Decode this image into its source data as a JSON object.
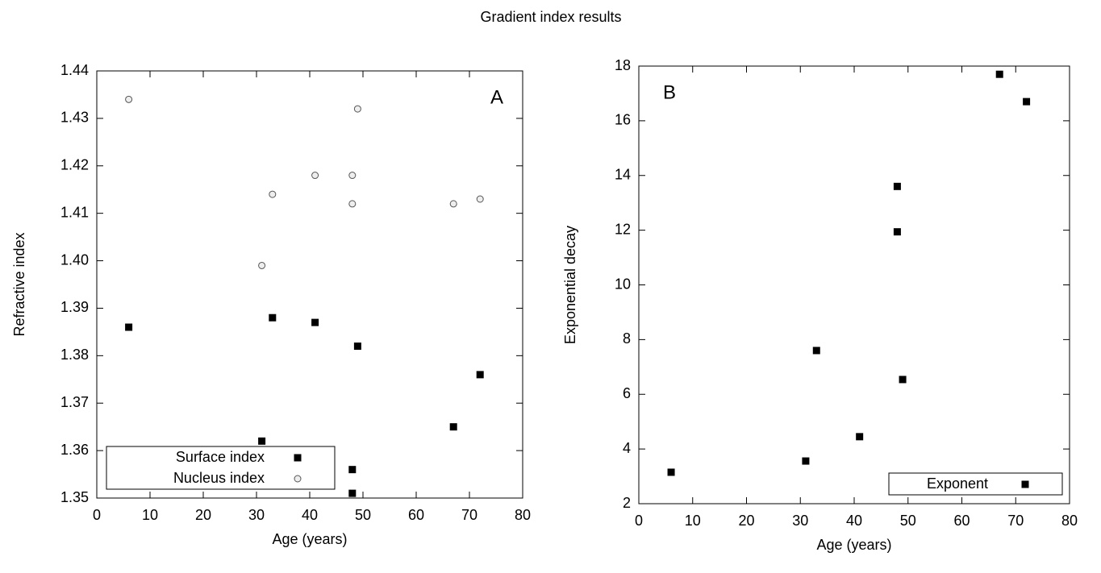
{
  "title": "Gradient index results",
  "chart_data": [
    {
      "type": "scatter",
      "annotation": "A",
      "xlabel": "Age (years)",
      "ylabel": "Refractive index",
      "xlim": [
        0,
        80
      ],
      "xticks": [
        0,
        10,
        20,
        30,
        40,
        50,
        60,
        70,
        80
      ],
      "ylim": [
        1.35,
        1.44
      ],
      "yticks": [
        1.35,
        1.36,
        1.37,
        1.38,
        1.39,
        {
          "value": 1.4,
          "label": "1.40"
        },
        1.41,
        1.42,
        1.43,
        1.44
      ],
      "legend": "lower left",
      "series": [
        {
          "name": "Surface index",
          "color": "#000000",
          "marker": "square",
          "x": [
            6,
            33,
            41,
            49,
            72,
            67,
            31,
            48,
            48
          ],
          "values": [
            1.386,
            1.388,
            1.387,
            1.382,
            1.376,
            1.365,
            1.362,
            1.356,
            1.351
          ]
        },
        {
          "name": "Nucleus index",
          "color": "#555555",
          "marker": "circle",
          "x": [
            6,
            49,
            41,
            48,
            33,
            48,
            67,
            72,
            31
          ],
          "values": [
            1.434,
            1.432,
            1.418,
            1.418,
            1.414,
            1.412,
            1.412,
            1.413,
            1.399
          ]
        }
      ]
    },
    {
      "type": "scatter",
      "annotation": "B",
      "xlabel": "Age (years)",
      "ylabel": "Exponential decay",
      "xlim": [
        0,
        80
      ],
      "xticks": [
        0,
        10,
        20,
        30,
        40,
        50,
        60,
        70,
        80
      ],
      "ylim": [
        2,
        18
      ],
      "yticks": [
        2,
        4,
        6,
        8,
        10,
        12,
        14,
        16,
        18
      ],
      "legend": "lower right",
      "series": [
        {
          "name": "Exponent",
          "color": "#000000",
          "marker": "square",
          "x": [
            6,
            31,
            33,
            41,
            48,
            48,
            49,
            67,
            72
          ],
          "values": [
            3.15,
            3.56,
            7.6,
            4.45,
            13.6,
            11.94,
            6.54,
            17.7,
            16.7
          ]
        }
      ]
    }
  ]
}
